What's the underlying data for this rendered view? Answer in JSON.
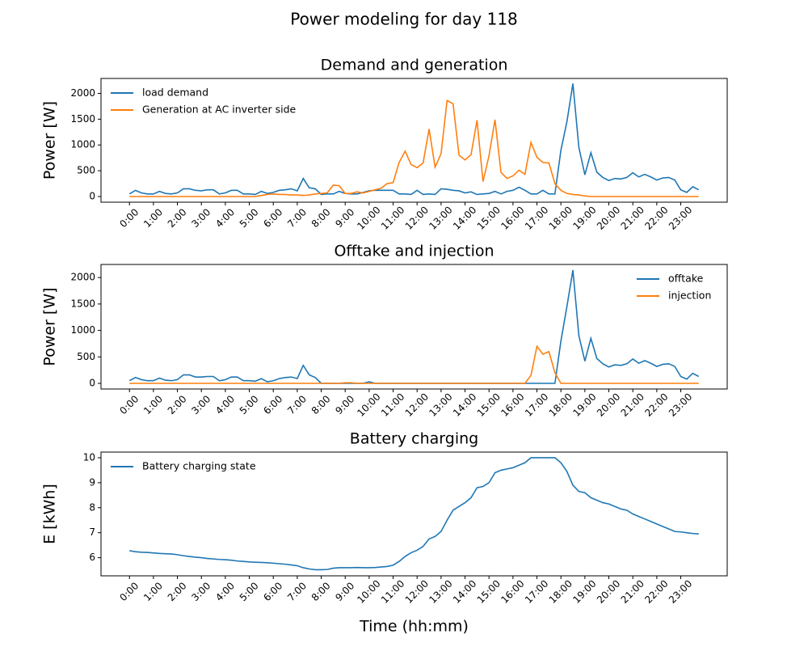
{
  "title": "Power modeling for day 118",
  "chart_data": [
    {
      "type": "line",
      "title": "Demand and generation",
      "ylabel": "Power [W]",
      "legend": "upper left",
      "x": [
        0,
        0.25,
        0.5,
        0.75,
        1,
        1.25,
        1.5,
        1.75,
        2,
        2.25,
        2.5,
        2.75,
        3,
        3.25,
        3.5,
        3.75,
        4,
        4.25,
        4.5,
        4.75,
        5,
        5.25,
        5.5,
        5.75,
        6,
        6.25,
        6.5,
        6.75,
        7,
        7.25,
        7.5,
        7.75,
        8,
        8.25,
        8.5,
        8.75,
        9,
        9.25,
        9.5,
        9.75,
        10,
        10.25,
        10.5,
        10.75,
        11,
        11.25,
        11.5,
        11.75,
        12,
        12.25,
        12.5,
        12.75,
        13,
        13.25,
        13.5,
        13.75,
        14,
        14.25,
        14.5,
        14.75,
        15,
        15.25,
        15.5,
        15.75,
        16,
        16.25,
        16.5,
        16.75,
        17,
        17.25,
        17.5,
        17.75,
        18,
        18.25,
        18.5,
        18.75,
        19,
        19.25,
        19.5,
        19.75,
        20,
        20.25,
        20.5,
        20.75,
        21,
        21.25,
        21.5,
        21.75,
        22,
        22.25,
        22.5,
        22.75,
        23,
        23.25,
        23.5,
        23.75
      ],
      "series": [
        {
          "name": "load demand",
          "color": "#1f77b4",
          "values": [
            50,
            120,
            70,
            50,
            50,
            100,
            60,
            50,
            70,
            150,
            150,
            120,
            110,
            130,
            130,
            50,
            70,
            120,
            120,
            50,
            50,
            40,
            100,
            60,
            80,
            120,
            130,
            150,
            110,
            350,
            170,
            150,
            40,
            50,
            50,
            100,
            60,
            50,
            50,
            80,
            110,
            120,
            120,
            120,
            120,
            50,
            50,
            40,
            120,
            40,
            50,
            40,
            150,
            140,
            120,
            110,
            70,
            90,
            40,
            50,
            60,
            100,
            50,
            100,
            120,
            180,
            120,
            50,
            50,
            120,
            50,
            50,
            900,
            1450,
            2190,
            950,
            420,
            850,
            470,
            370,
            310,
            350,
            340,
            370,
            460,
            380,
            430,
            380,
            320,
            360,
            370,
            320,
            130,
            80,
            190,
            130
          ]
        },
        {
          "name": "Generation at AC inverter side",
          "color": "#ff7f0e",
          "values": [
            0,
            0,
            0,
            0,
            0,
            0,
            0,
            0,
            0,
            0,
            0,
            0,
            0,
            0,
            0,
            0,
            0,
            0,
            0,
            0,
            0,
            0,
            20,
            40,
            50,
            40,
            40,
            30,
            30,
            20,
            30,
            50,
            60,
            70,
            220,
            210,
            60,
            60,
            90,
            70,
            100,
            130,
            160,
            250,
            270,
            660,
            880,
            620,
            560,
            650,
            1310,
            570,
            830,
            1860,
            1800,
            800,
            710,
            810,
            1480,
            290,
            790,
            1490,
            470,
            350,
            400,
            510,
            430,
            1050,
            760,
            660,
            650,
            250,
            120,
            60,
            40,
            30,
            10,
            0,
            0,
            0,
            0,
            0,
            0,
            0,
            0,
            0,
            0,
            0,
            0,
            0,
            0,
            0,
            0,
            0,
            0,
            0
          ]
        }
      ],
      "xlim": [
        -1.1875,
        24.9375
      ],
      "xticks": [
        {
          "value": 0,
          "label": "0:00"
        },
        {
          "value": 1,
          "label": "1:00"
        },
        {
          "value": 2,
          "label": "2:00"
        },
        {
          "value": 3,
          "label": "3:00"
        },
        {
          "value": 4,
          "label": "4:00"
        },
        {
          "value": 5,
          "label": "5:00"
        },
        {
          "value": 6,
          "label": "6:00"
        },
        {
          "value": 7,
          "label": "7:00"
        },
        {
          "value": 8,
          "label": "8:00"
        },
        {
          "value": 9,
          "label": "9:00"
        },
        {
          "value": 10,
          "label": "10:00"
        },
        {
          "value": 11,
          "label": "11:00"
        },
        {
          "value": 12,
          "label": "12:00"
        },
        {
          "value": 13,
          "label": "13:00"
        },
        {
          "value": 14,
          "label": "14:00"
        },
        {
          "value": 15,
          "label": "15:00"
        },
        {
          "value": 16,
          "label": "16:00"
        },
        {
          "value": 17,
          "label": "17:00"
        },
        {
          "value": 18,
          "label": "18:00"
        },
        {
          "value": 19,
          "label": "19:00"
        },
        {
          "value": 20,
          "label": "20:00"
        },
        {
          "value": 21,
          "label": "21:00"
        },
        {
          "value": 22,
          "label": "22:00"
        },
        {
          "value": 23,
          "label": "23:00"
        }
      ],
      "ylim": [
        -110,
        2290
      ],
      "yticks": [
        0,
        500,
        1000,
        1500,
        2000
      ]
    },
    {
      "type": "line",
      "title": "Offtake and injection",
      "ylabel": "Power [W]",
      "legend": "upper right",
      "x": [
        0,
        0.25,
        0.5,
        0.75,
        1,
        1.25,
        1.5,
        1.75,
        2,
        2.25,
        2.5,
        2.75,
        3,
        3.25,
        3.5,
        3.75,
        4,
        4.25,
        4.5,
        4.75,
        5,
        5.25,
        5.5,
        5.75,
        6,
        6.25,
        6.5,
        6.75,
        7,
        7.25,
        7.5,
        7.75,
        8,
        8.25,
        8.5,
        8.75,
        9,
        9.25,
        9.5,
        9.75,
        10,
        10.25,
        10.5,
        10.75,
        11,
        11.25,
        11.5,
        11.75,
        12,
        12.25,
        12.5,
        12.75,
        13,
        13.25,
        13.5,
        13.75,
        14,
        14.25,
        14.5,
        14.75,
        15,
        15.25,
        15.5,
        15.75,
        16,
        16.25,
        16.5,
        16.75,
        17,
        17.25,
        17.5,
        17.75,
        18,
        18.25,
        18.5,
        18.75,
        19,
        19.25,
        19.5,
        19.75,
        20,
        20.25,
        20.5,
        20.75,
        21,
        21.25,
        21.5,
        21.75,
        22,
        22.25,
        22.5,
        22.75,
        23,
        23.25,
        23.5,
        23.75
      ],
      "series": [
        {
          "name": "offtake",
          "color": "#1f77b4",
          "values": [
            50,
            110,
            70,
            50,
            50,
            100,
            60,
            50,
            70,
            160,
            160,
            120,
            120,
            130,
            130,
            50,
            70,
            120,
            120,
            50,
            50,
            40,
            90,
            30,
            50,
            90,
            110,
            120,
            90,
            340,
            160,
            110,
            0,
            0,
            0,
            0,
            0,
            0,
            0,
            0,
            30,
            0,
            0,
            0,
            0,
            0,
            0,
            0,
            0,
            0,
            0,
            0,
            0,
            0,
            0,
            0,
            0,
            0,
            0,
            0,
            0,
            0,
            0,
            0,
            0,
            0,
            0,
            0,
            0,
            0,
            0,
            0,
            800,
            1450,
            2140,
            900,
            420,
            850,
            470,
            370,
            310,
            350,
            340,
            370,
            460,
            380,
            430,
            380,
            320,
            360,
            370,
            320,
            130,
            80,
            190,
            130
          ]
        },
        {
          "name": "injection",
          "color": "#ff7f0e",
          "values": [
            0,
            0,
            0,
            0,
            0,
            0,
            0,
            0,
            0,
            0,
            0,
            0,
            0,
            0,
            0,
            0,
            0,
            0,
            0,
            0,
            0,
            0,
            0,
            0,
            0,
            0,
            0,
            0,
            0,
            0,
            0,
            0,
            0,
            0,
            0,
            0,
            10,
            10,
            0,
            0,
            0,
            0,
            0,
            0,
            0,
            0,
            0,
            0,
            0,
            0,
            0,
            0,
            0,
            0,
            0,
            0,
            0,
            0,
            0,
            0,
            0,
            0,
            0,
            0,
            0,
            0,
            0,
            150,
            700,
            550,
            600,
            200,
            0,
            0,
            0,
            0,
            0,
            0,
            0,
            0,
            0,
            0,
            0,
            0,
            0,
            0,
            0,
            0,
            0,
            0,
            0,
            0,
            0,
            0,
            0,
            0
          ]
        }
      ],
      "xlim": [
        -1.1875,
        24.9375
      ],
      "xticks": [
        {
          "value": 0,
          "label": "0:00"
        },
        {
          "value": 1,
          "label": "1:00"
        },
        {
          "value": 2,
          "label": "2:00"
        },
        {
          "value": 3,
          "label": "3:00"
        },
        {
          "value": 4,
          "label": "4:00"
        },
        {
          "value": 5,
          "label": "5:00"
        },
        {
          "value": 6,
          "label": "6:00"
        },
        {
          "value": 7,
          "label": "7:00"
        },
        {
          "value": 8,
          "label": "8:00"
        },
        {
          "value": 9,
          "label": "9:00"
        },
        {
          "value": 10,
          "label": "10:00"
        },
        {
          "value": 11,
          "label": "11:00"
        },
        {
          "value": 12,
          "label": "12:00"
        },
        {
          "value": 13,
          "label": "13:00"
        },
        {
          "value": 14,
          "label": "14:00"
        },
        {
          "value": 15,
          "label": "15:00"
        },
        {
          "value": 16,
          "label": "16:00"
        },
        {
          "value": 17,
          "label": "17:00"
        },
        {
          "value": 18,
          "label": "18:00"
        },
        {
          "value": 19,
          "label": "19:00"
        },
        {
          "value": 20,
          "label": "20:00"
        },
        {
          "value": 21,
          "label": "21:00"
        },
        {
          "value": 22,
          "label": "22:00"
        },
        {
          "value": 23,
          "label": "23:00"
        }
      ],
      "ylim": [
        -107,
        2247
      ],
      "yticks": [
        0,
        500,
        1000,
        1500,
        2000
      ]
    },
    {
      "type": "line",
      "title": "Battery charging",
      "ylabel": "E [kWh]",
      "xlabel": "Time (hh:mm)",
      "legend": "upper left",
      "x": [
        0,
        0.25,
        0.5,
        0.75,
        1,
        1.25,
        1.5,
        1.75,
        2,
        2.25,
        2.5,
        2.75,
        3,
        3.25,
        3.5,
        3.75,
        4,
        4.25,
        4.5,
        4.75,
        5,
        5.25,
        5.5,
        5.75,
        6,
        6.25,
        6.5,
        6.75,
        7,
        7.25,
        7.5,
        7.75,
        8,
        8.25,
        8.5,
        8.75,
        9,
        9.25,
        9.5,
        9.75,
        10,
        10.25,
        10.5,
        10.75,
        11,
        11.25,
        11.5,
        11.75,
        12,
        12.25,
        12.5,
        12.75,
        13,
        13.25,
        13.5,
        13.75,
        14,
        14.25,
        14.5,
        14.75,
        15,
        15.25,
        15.5,
        15.75,
        16,
        16.25,
        16.5,
        16.75,
        17,
        17.25,
        17.5,
        17.75,
        18,
        18.25,
        18.5,
        18.75,
        19,
        19.25,
        19.5,
        19.75,
        20,
        20.25,
        20.5,
        20.75,
        21,
        21.25,
        21.5,
        21.75,
        22,
        22.25,
        22.5,
        22.75,
        23,
        23.25,
        23.5,
        23.75
      ],
      "series": [
        {
          "name": "Battery charging state",
          "color": "#1f77b4",
          "values": [
            6.28,
            6.24,
            6.22,
            6.21,
            6.19,
            6.17,
            6.16,
            6.15,
            6.12,
            6.08,
            6.05,
            6.02,
            6.0,
            5.97,
            5.95,
            5.93,
            5.92,
            5.9,
            5.87,
            5.85,
            5.83,
            5.82,
            5.81,
            5.8,
            5.78,
            5.76,
            5.74,
            5.71,
            5.68,
            5.6,
            5.55,
            5.52,
            5.52,
            5.53,
            5.58,
            5.6,
            5.6,
            5.6,
            5.61,
            5.6,
            5.6,
            5.61,
            5.63,
            5.65,
            5.7,
            5.85,
            6.05,
            6.2,
            6.3,
            6.45,
            6.75,
            6.85,
            7.05,
            7.5,
            7.9,
            8.05,
            8.2,
            8.4,
            8.8,
            8.85,
            9.0,
            9.4,
            9.5,
            9.55,
            9.6,
            9.7,
            9.8,
            10,
            10,
            10,
            10,
            10,
            9.8,
            9.45,
            8.9,
            8.65,
            8.6,
            8.4,
            8.3,
            8.2,
            8.15,
            8.05,
            7.95,
            7.9,
            7.75,
            7.65,
            7.55,
            7.45,
            7.35,
            7.25,
            7.15,
            7.05,
            7.03,
            7.0,
            6.97,
            6.95
          ]
        }
      ],
      "xlim": [
        -1.1875,
        24.9375
      ],
      "xticks": [
        {
          "value": 0,
          "label": "0:00"
        },
        {
          "value": 1,
          "label": "1:00"
        },
        {
          "value": 2,
          "label": "2:00"
        },
        {
          "value": 3,
          "label": "3:00"
        },
        {
          "value": 4,
          "label": "4:00"
        },
        {
          "value": 5,
          "label": "5:00"
        },
        {
          "value": 6,
          "label": "6:00"
        },
        {
          "value": 7,
          "label": "7:00"
        },
        {
          "value": 8,
          "label": "8:00"
        },
        {
          "value": 9,
          "label": "9:00"
        },
        {
          "value": 10,
          "label": "10:00"
        },
        {
          "value": 11,
          "label": "11:00"
        },
        {
          "value": 12,
          "label": "12:00"
        },
        {
          "value": 13,
          "label": "13:00"
        },
        {
          "value": 14,
          "label": "14:00"
        },
        {
          "value": 15,
          "label": "15:00"
        },
        {
          "value": 16,
          "label": "16:00"
        },
        {
          "value": 17,
          "label": "17:00"
        },
        {
          "value": 18,
          "label": "18:00"
        },
        {
          "value": 19,
          "label": "19:00"
        },
        {
          "value": 20,
          "label": "20:00"
        },
        {
          "value": 21,
          "label": "21:00"
        },
        {
          "value": 22,
          "label": "22:00"
        },
        {
          "value": 23,
          "label": "23:00"
        }
      ],
      "ylim": [
        5.275,
        10.225
      ],
      "yticks": [
        6,
        7,
        8,
        9,
        10
      ]
    }
  ]
}
